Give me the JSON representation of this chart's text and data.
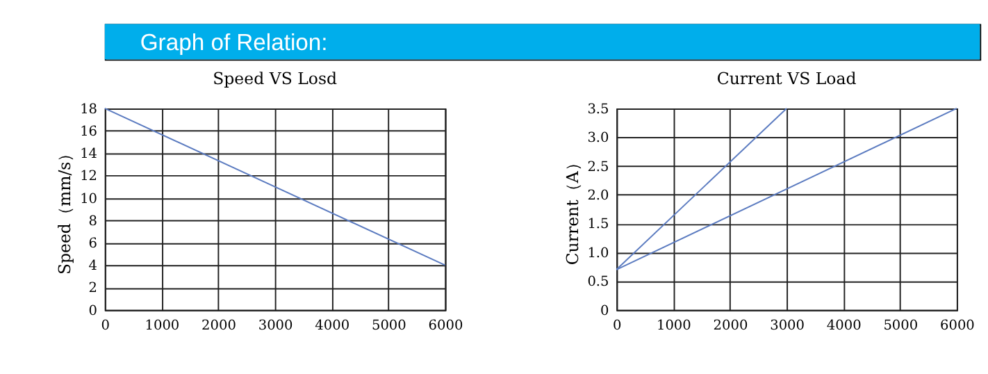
{
  "chart_data": [
    {
      "type": "line",
      "title": "Speed VS Losd",
      "ylabel": "Speed（mm/s）",
      "annotations": [
        "Graph of Relation:"
      ],
      "x": [
        0,
        6000
      ],
      "series": [
        {
          "color": "#5b7bc0",
          "values": [
            18,
            4
          ]
        }
      ],
      "xlim": [
        0,
        6000
      ],
      "xticks": [
        0,
        1000,
        2000,
        3000,
        4000,
        5000,
        6000
      ],
      "ylim": [
        0,
        18
      ],
      "yticks": [
        0,
        2,
        4,
        6,
        8,
        10,
        12,
        14,
        16,
        18
      ],
      "grid": true,
      "marker": "none",
      "line_style": "solid"
    },
    {
      "type": "line",
      "title": "Current VS Load",
      "ylabel": "Current（A）",
      "series": [
        {
          "color": "#5b7bc0",
          "x": [
            0,
            3000
          ],
          "values": [
            0.7,
            3.5
          ]
        },
        {
          "color": "#5b7bc0",
          "x": [
            0,
            6000
          ],
          "values": [
            0.7,
            3.5
          ]
        }
      ],
      "xlim": [
        0,
        6000
      ],
      "xticks": [
        0,
        1000,
        2000,
        3000,
        4000,
        5000,
        6000
      ],
      "ylim": [
        0,
        3.5
      ],
      "yticks": [
        0,
        {
          "value": 0.5,
          "label": "0.5"
        },
        {
          "value": 1,
          "label": "1.0"
        },
        {
          "value": 1.5,
          "label": "1.5"
        },
        {
          "value": 2,
          "label": "2.0"
        },
        {
          "value": 2.5,
          "label": "2.5"
        },
        {
          "value": 3,
          "label": "3.0"
        },
        {
          "value": 3.5,
          "label": "3.5"
        }
      ],
      "grid": true,
      "marker": "none",
      "line_style": "solid"
    }
  ]
}
